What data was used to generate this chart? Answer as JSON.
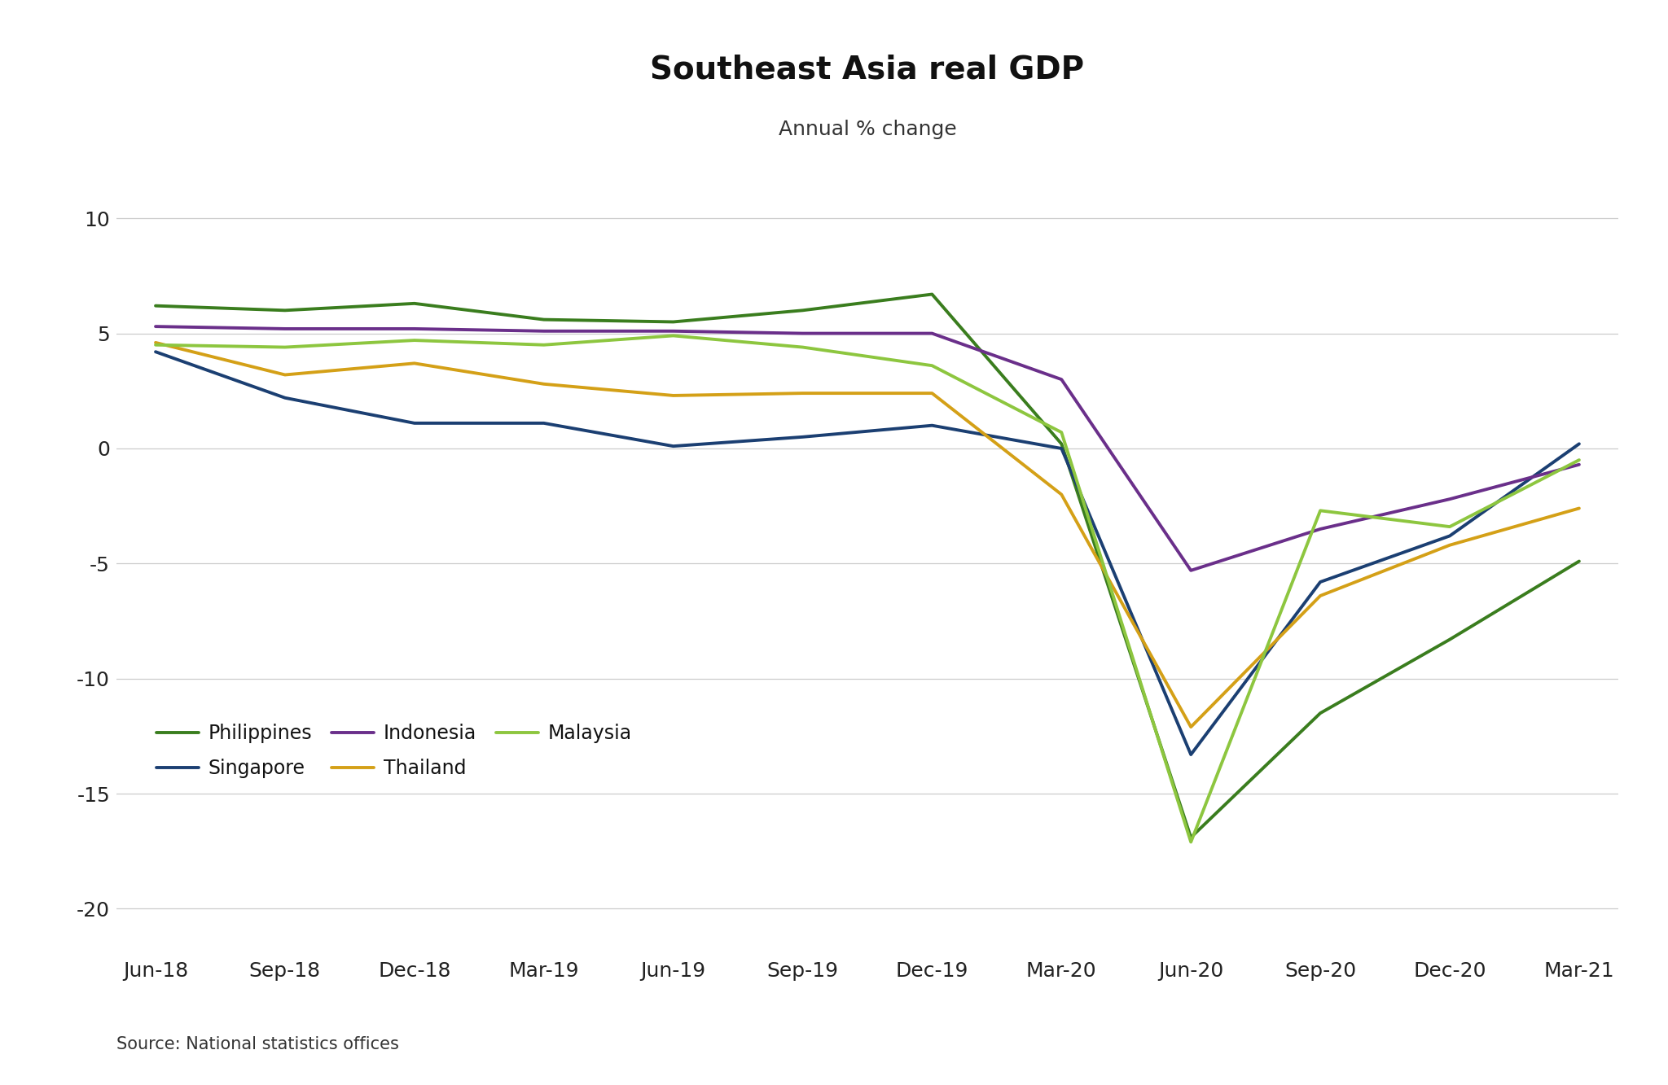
{
  "title": "Southeast Asia real GDP",
  "subtitle": "Annual % change",
  "source": "Source: National statistics offices",
  "x_labels": [
    "Jun-18",
    "Sep-18",
    "Dec-18",
    "Mar-19",
    "Jun-19",
    "Sep-19",
    "Dec-19",
    "Mar-20",
    "Jun-20",
    "Sep-20",
    "Dec-20",
    "Mar-21"
  ],
  "series": [
    {
      "name": "Philippines",
      "color": "#3a7d1e",
      "linewidth": 2.8,
      "values": [
        6.2,
        6.0,
        6.3,
        5.6,
        5.5,
        6.0,
        6.7,
        0.2,
        -16.9,
        -11.5,
        -8.3,
        -4.9
      ]
    },
    {
      "name": "Singapore",
      "color": "#1b3f72",
      "linewidth": 2.8,
      "values": [
        4.2,
        2.2,
        1.1,
        1.1,
        0.1,
        0.5,
        1.0,
        0.0,
        -13.3,
        -5.8,
        -3.8,
        0.2
      ]
    },
    {
      "name": "Indonesia",
      "color": "#6a2f8a",
      "linewidth": 2.8,
      "values": [
        5.3,
        5.2,
        5.2,
        5.1,
        5.1,
        5.0,
        5.0,
        3.0,
        -5.3,
        -3.5,
        -2.2,
        -0.7
      ]
    },
    {
      "name": "Thailand",
      "color": "#d4a017",
      "linewidth": 2.8,
      "values": [
        4.6,
        3.2,
        3.7,
        2.8,
        2.3,
        2.4,
        2.4,
        -2.0,
        -12.1,
        -6.4,
        -4.2,
        -2.6
      ]
    },
    {
      "name": "Malaysia",
      "color": "#8dc63f",
      "linewidth": 2.8,
      "values": [
        4.5,
        4.4,
        4.7,
        4.5,
        4.9,
        4.4,
        3.6,
        0.7,
        -17.1,
        -2.7,
        -3.4,
        -0.5
      ]
    }
  ],
  "ylim": [
    -22,
    11
  ],
  "yticks": [
    -20,
    -15,
    -10,
    -5,
    0,
    5,
    10
  ],
  "background_color": "#ffffff",
  "grid_color": "#cccccc",
  "title_fontsize": 28,
  "subtitle_fontsize": 18,
  "tick_fontsize": 18,
  "legend_fontsize": 17,
  "source_fontsize": 15
}
